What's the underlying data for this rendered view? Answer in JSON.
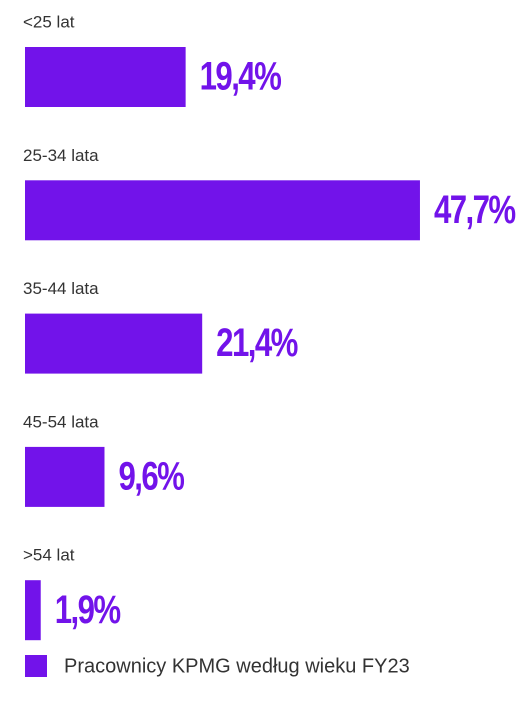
{
  "chart_data": {
    "type": "bar",
    "orientation": "horizontal",
    "categories": [
      "<25 lat",
      "25-34 lata",
      "35-44 lata",
      "45-54 lata",
      ">54 lat"
    ],
    "series": [
      {
        "name": "Pracownicy KPMG według wieku FY23",
        "color": "#7213ea",
        "values": [
          19.4,
          47.7,
          21.4,
          9.6,
          1.9
        ],
        "value_labels": [
          "19,4%",
          "47,7%",
          "21,4%",
          "9,6%",
          "1,9%"
        ]
      }
    ]
  }
}
